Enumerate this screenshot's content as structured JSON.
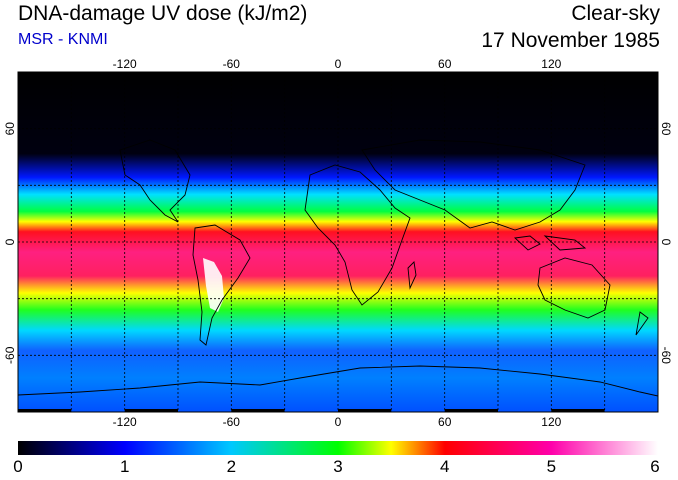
{
  "header": {
    "title": "DNA-damage UV dose (kJ/m2)",
    "subtitle": "MSR - KNMI",
    "subtitle_color": "#0000cc",
    "mode": "Clear-sky",
    "date": "17 November 1985"
  },
  "map": {
    "projection": "equirectangular",
    "lon_range": [
      -180,
      180
    ],
    "lat_range": [
      -90,
      90
    ],
    "grid_spacing_deg": 30,
    "lon_ticks": [
      "-120",
      "-60",
      "0",
      "60",
      "120"
    ],
    "lat_ticks": [
      "60",
      "0",
      "-60"
    ]
  },
  "colorbar": {
    "min": 0,
    "max": 6,
    "labels": [
      "0",
      "1",
      "2",
      "3",
      "4",
      "5",
      "6"
    ],
    "colors": [
      "#000000",
      "#0000ff",
      "#00c8ff",
      "#00ff00",
      "#ffff00",
      "#ff0000",
      "#ff00aa",
      "#ffffff"
    ]
  }
}
